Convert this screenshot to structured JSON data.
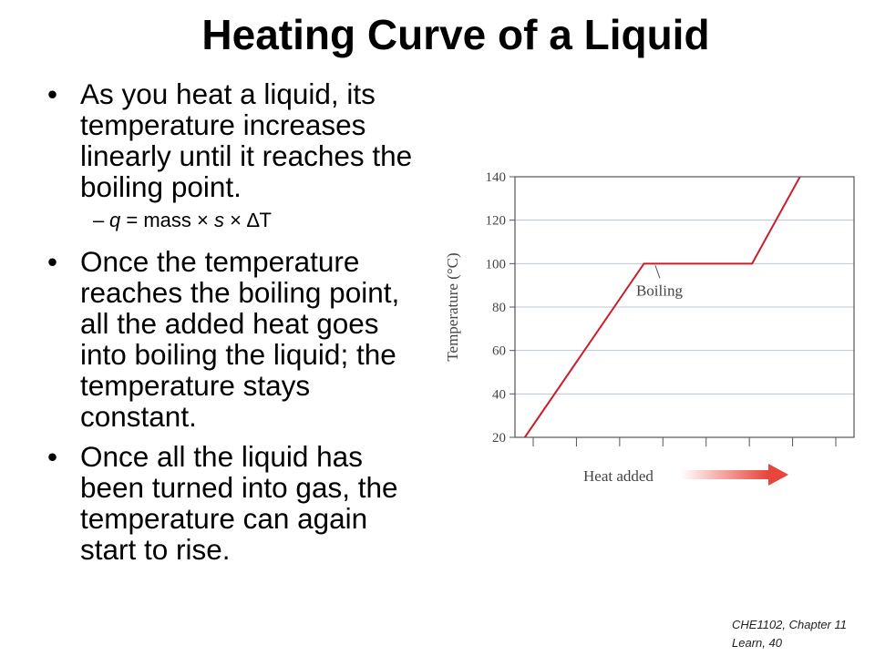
{
  "slide": {
    "title": "Heating Curve of a Liquid",
    "bullets": [
      "As you heat a liquid, its temperature increases linearly until it reaches the boiling point.",
      "Once the temperature reaches the boiling point, all the added heat goes into boiling the liquid; the temperature stays constant.",
      "Once all the liquid has been turned into gas, the temperature can again start to rise."
    ],
    "sub_bullet": {
      "q": "q",
      "mid": " = mass × ",
      "s": "s",
      "tail": " × ∆T"
    },
    "footer_line1": "CHE1102, Chapter 11",
    "footer_line2": "Learn, 40"
  },
  "chart_data": {
    "type": "line",
    "xlabel": "Heat added",
    "ylabel": "Temperature (°C)",
    "ylim": [
      20,
      140
    ],
    "yticks": [
      20,
      40,
      60,
      80,
      100,
      120,
      140
    ],
    "x_tick_count": 8,
    "grid": "horizontal",
    "line_color": "#c8202a",
    "arrow_color": "#e8453c",
    "annotation": "Boiling",
    "points": [
      {
        "x": 0.0,
        "y": 20
      },
      {
        "x": 4.85,
        "y": 100
      },
      {
        "x": 9.25,
        "y": 100
      },
      {
        "x": 11.2,
        "y": 140
      }
    ],
    "xlim": [
      -0.4,
      13.4
    ]
  }
}
